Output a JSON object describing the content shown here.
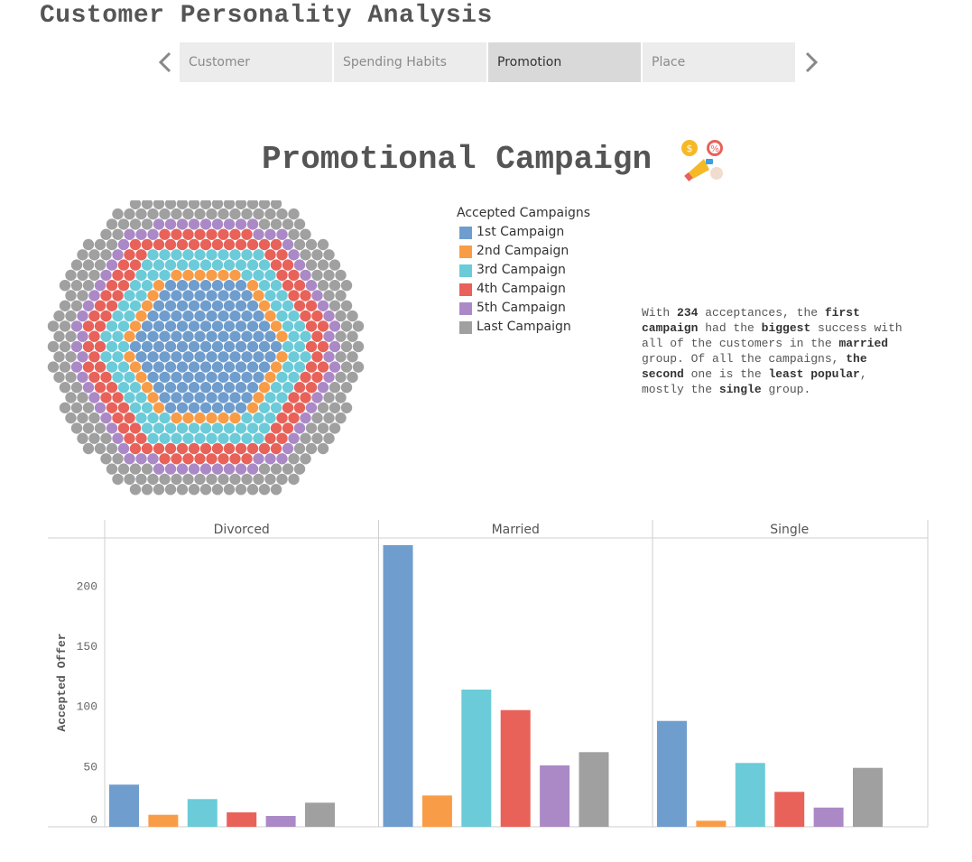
{
  "app": {
    "title": "Customer Personality Analysis"
  },
  "tabs": [
    {
      "label": "Customer",
      "active": false
    },
    {
      "label": "Spending Habits",
      "active": false
    },
    {
      "label": "Promotion",
      "active": true
    },
    {
      "label": "Place",
      "active": false
    }
  ],
  "section": {
    "title": "Promotional Campaign"
  },
  "legend": {
    "title": "Accepted Campaigns",
    "items": [
      {
        "label": "1st Campaign",
        "color": "#6f9dcd"
      },
      {
        "label": "2nd Campaign",
        "color": "#f99c47"
      },
      {
        "label": "3rd Campaign",
        "color": "#6ccbd8"
      },
      {
        "label": "4th Campaign",
        "color": "#e8625a"
      },
      {
        "label": "5th Campaign",
        "color": "#ab89c6"
      },
      {
        "label": "Last Campaign",
        "color": "#a0a0a0"
      }
    ]
  },
  "insight": {
    "t1": "With ",
    "b1": "234",
    "t2": " acceptances, the ",
    "b2": "first campaign",
    "t3": " had the ",
    "b3": "biggest",
    "t4": " success with all of the customers in the ",
    "b4": "married",
    "t5": " group. Of all the campaigns, ",
    "b5": "the second",
    "t6": " one is the ",
    "b6": "least popular",
    "t7": ", mostly the ",
    "b7": "single",
    "t8": " group."
  },
  "chart_data": {
    "type": "bar",
    "ylabel": "Accepted Offer",
    "xlabel": "",
    "ylim": [
      0,
      240
    ],
    "yticks": [
      0,
      50,
      100,
      150,
      200
    ],
    "grid": false,
    "facets": [
      "Divorced",
      "Married",
      "Single"
    ],
    "categories": [
      "1st Campaign",
      "2nd Campaign",
      "3rd Campaign",
      "4th Campaign",
      "5th Campaign",
      "Last Campaign"
    ],
    "series": [
      {
        "facet": "Divorced",
        "values": [
          35,
          10,
          23,
          12,
          9,
          20
        ]
      },
      {
        "facet": "Married",
        "values": [
          234,
          26,
          114,
          97,
          51,
          62
        ]
      },
      {
        "facet": "Single",
        "values": [
          88,
          5,
          53,
          29,
          16,
          49
        ]
      }
    ]
  }
}
